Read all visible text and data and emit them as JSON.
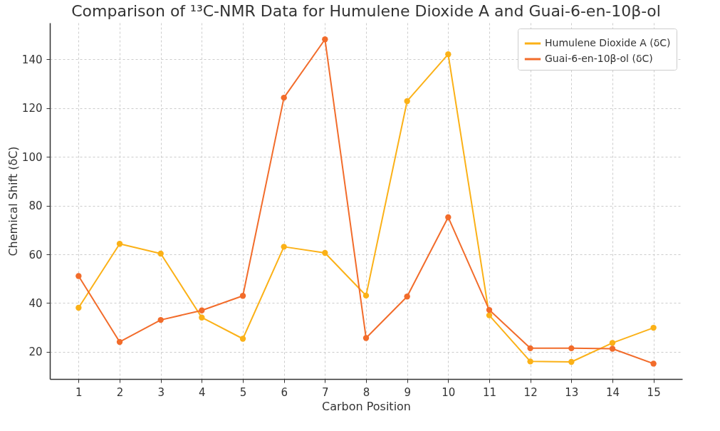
{
  "chart_data": {
    "type": "line",
    "title": "Comparison of ¹³C-NMR Data for Humulene Dioxide A and Guai-6-en-10β-ol",
    "xlabel": "Carbon Position",
    "ylabel": "Chemical Shift (δC)",
    "x": [
      1,
      2,
      3,
      4,
      5,
      6,
      7,
      8,
      9,
      10,
      11,
      12,
      13,
      14,
      15
    ],
    "series": [
      {
        "name": "Humulene Dioxide A (δC)",
        "color": "#fbb117",
        "values": [
          38.1,
          64.3,
          60.3,
          34.1,
          25.4,
          63.1,
          60.6,
          43.1,
          122.8,
          142.0,
          35.0,
          16.1,
          15.9,
          23.7,
          29.9
        ]
      },
      {
        "name": "Guai-6-en-10β-ol (δC)",
        "color": "#f26c2b",
        "values": [
          51.1,
          24.1,
          33.1,
          37.0,
          43.0,
          124.2,
          148.1,
          25.7,
          42.7,
          75.2,
          37.2,
          21.5,
          21.5,
          21.3,
          15.2
        ]
      }
    ],
    "xlim": [
      0.3,
      15.7
    ],
    "xticks": [
      1,
      2,
      3,
      4,
      5,
      6,
      7,
      8,
      9,
      10,
      11,
      12,
      13,
      14,
      15
    ],
    "ylim": [
      8.9,
      154.9
    ],
    "yticks": [
      20,
      40,
      60,
      80,
      100,
      120,
      140
    ],
    "grid": true,
    "legend": "top right",
    "marker": "circle",
    "line_style": "solid"
  }
}
